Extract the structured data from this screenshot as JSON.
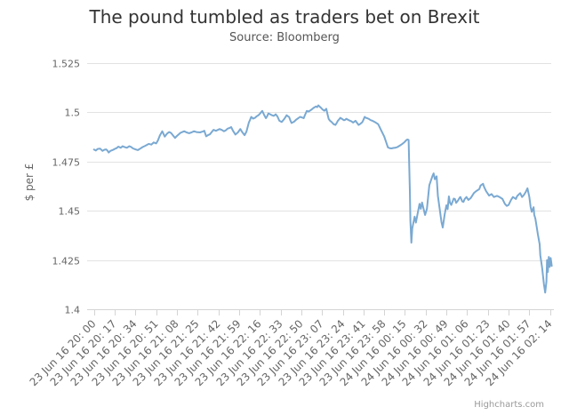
{
  "chart": {
    "title": "The pound tumbled as traders bet on Brexit",
    "subtitle": "Source: Bloomberg",
    "credit": "Highcharts.com"
  },
  "chart_data": {
    "type": "line",
    "title": "The pound tumbled as traders bet on Brexit",
    "subtitle": "Source: Bloomberg",
    "xlabel": "",
    "ylabel": "$ per £",
    "ylim": [
      1.4,
      1.525
    ],
    "yticks": [
      1.4,
      1.425,
      1.45,
      1.475,
      1.5,
      1.525
    ],
    "ytick_labels": [
      "1.4",
      "1.425",
      "1.45",
      "1.475",
      "1.5",
      "1.525"
    ],
    "xtick_labels": [
      "23 Jun 16 20: 00",
      "23 Jun 16 20: 17",
      "23 Jun 16 20: 34",
      "23 Jun 16 20: 51",
      "23 Jun 16 21: 08",
      "23 Jun 16 21: 25",
      "23 Jun 16 21: 42",
      "23 Jun 16 21: 59",
      "23 Jun 16 22: 16",
      "23 Jun 16 22: 33",
      "23 Jun 16 22: 50",
      "23 Jun 16 23: 07",
      "23 Jun 16 23: 24",
      "23 Jun 16 23: 41",
      "23 Jun 16 23: 58",
      "24 Jun 16 00: 15",
      "24 Jun 16 00: 32",
      "24 Jun 16 00: 49",
      "24 Jun 16 01: 06",
      "24 Jun 16 01: 23",
      "24 Jun 16 01: 40",
      "24 Jun 16 01: 57",
      "24 Jun 16 02: 14"
    ],
    "x_minutes_range": [
      0,
      374
    ],
    "xtick_interval_minutes": 17,
    "grid": true,
    "legend": false,
    "line_color": "#7aa9d2",
    "grid_color": "#e2e2e2",
    "axis_line_color": "#d4d4d4",
    "tick_label_color": "#666666",
    "points": [
      [
        0,
        1.4811
      ],
      [
        1.5,
        1.4806
      ],
      [
        3,
        1.4814
      ],
      [
        5,
        1.4816
      ],
      [
        7,
        1.4804
      ],
      [
        8.5,
        1.481
      ],
      [
        10,
        1.4812
      ],
      [
        11,
        1.4806
      ],
      [
        12,
        1.4796
      ],
      [
        13.5,
        1.4804
      ],
      [
        15.5,
        1.4809
      ],
      [
        17,
        1.4814
      ],
      [
        18.5,
        1.4818
      ],
      [
        20,
        1.4826
      ],
      [
        22,
        1.482
      ],
      [
        23.5,
        1.4828
      ],
      [
        25,
        1.4824
      ],
      [
        27,
        1.482
      ],
      [
        29,
        1.4828
      ],
      [
        30.5,
        1.4824
      ],
      [
        32,
        1.4817
      ],
      [
        34,
        1.4812
      ],
      [
        36,
        1.4808
      ],
      [
        38,
        1.4816
      ],
      [
        40,
        1.4824
      ],
      [
        42,
        1.483
      ],
      [
        45,
        1.484
      ],
      [
        47,
        1.4836
      ],
      [
        49,
        1.4847
      ],
      [
        51,
        1.4842
      ],
      [
        52.5,
        1.4858
      ],
      [
        54,
        1.4882
      ],
      [
        56,
        1.4904
      ],
      [
        58,
        1.4877
      ],
      [
        60,
        1.4892
      ],
      [
        61.5,
        1.49
      ],
      [
        63,
        1.4896
      ],
      [
        64,
        1.4889
      ],
      [
        66.5,
        1.487
      ],
      [
        68,
        1.488
      ],
      [
        71,
        1.4896
      ],
      [
        72.5,
        1.49
      ],
      [
        74,
        1.4904
      ],
      [
        76,
        1.4898
      ],
      [
        78,
        1.4894
      ],
      [
        80,
        1.4898
      ],
      [
        82,
        1.4904
      ],
      [
        84,
        1.49
      ],
      [
        87,
        1.4898
      ],
      [
        89,
        1.4902
      ],
      [
        90.5,
        1.4906
      ],
      [
        92,
        1.4878
      ],
      [
        93.5,
        1.4884
      ],
      [
        95,
        1.4888
      ],
      [
        96.5,
        1.49
      ],
      [
        98,
        1.4911
      ],
      [
        100,
        1.4906
      ],
      [
        103,
        1.4915
      ],
      [
        105,
        1.491
      ],
      [
        106.5,
        1.4904
      ],
      [
        108,
        1.4908
      ],
      [
        109.5,
        1.4917
      ],
      [
        111,
        1.492
      ],
      [
        112.5,
        1.4925
      ],
      [
        114,
        1.4906
      ],
      [
        116,
        1.4887
      ],
      [
        118,
        1.4898
      ],
      [
        120,
        1.4915
      ],
      [
        121.5,
        1.49
      ],
      [
        123.5,
        1.4884
      ],
      [
        125,
        1.4902
      ],
      [
        127,
        1.4948
      ],
      [
        128,
        1.4962
      ],
      [
        129,
        1.4977
      ],
      [
        130.5,
        1.4968
      ],
      [
        132,
        1.4972
      ],
      [
        133.5,
        1.498
      ],
      [
        135,
        1.4986
      ],
      [
        136.5,
        1.4996
      ],
      [
        138,
        1.5007
      ],
      [
        139.5,
        1.4988
      ],
      [
        141,
        1.497
      ],
      [
        142,
        1.498
      ],
      [
        143,
        1.4994
      ],
      [
        144.5,
        1.499
      ],
      [
        146,
        1.4985
      ],
      [
        147.5,
        1.4982
      ],
      [
        149,
        1.499
      ],
      [
        150.5,
        1.4979
      ],
      [
        152,
        1.4957
      ],
      [
        153,
        1.4954
      ],
      [
        154,
        1.4951
      ],
      [
        156,
        1.4966
      ],
      [
        158,
        1.4985
      ],
      [
        159,
        1.498
      ],
      [
        160,
        1.4976
      ],
      [
        161,
        1.496
      ],
      [
        162,
        1.4946
      ],
      [
        164,
        1.4952
      ],
      [
        166,
        1.4964
      ],
      [
        167.5,
        1.497
      ],
      [
        169,
        1.4977
      ],
      [
        170.5,
        1.4974
      ],
      [
        172,
        1.497
      ],
      [
        173,
        1.4986
      ],
      [
        174.5,
        1.5007
      ],
      [
        176,
        1.5004
      ],
      [
        178,
        1.5012
      ],
      [
        180,
        1.5022
      ],
      [
        182,
        1.503
      ],
      [
        183,
        1.5026
      ],
      [
        184,
        1.5035
      ],
      [
        186,
        1.5024
      ],
      [
        187.5,
        1.5014
      ],
      [
        189,
        1.5008
      ],
      [
        190.5,
        1.5018
      ],
      [
        191.5,
        1.499
      ],
      [
        192.5,
        1.4966
      ],
      [
        193.5,
        1.4958
      ],
      [
        195,
        1.495
      ],
      [
        196.5,
        1.494
      ],
      [
        198,
        1.4936
      ],
      [
        199,
        1.4946
      ],
      [
        200,
        1.4957
      ],
      [
        201,
        1.4964
      ],
      [
        202,
        1.4972
      ],
      [
        203.5,
        1.4966
      ],
      [
        205,
        1.496
      ],
      [
        206,
        1.4962
      ],
      [
        207,
        1.4967
      ],
      [
        209,
        1.496
      ],
      [
        211,
        1.4955
      ],
      [
        212.5,
        1.4948
      ],
      [
        214.5,
        1.4957
      ],
      [
        216,
        1.4944
      ],
      [
        217,
        1.4936
      ],
      [
        218.5,
        1.4942
      ],
      [
        220,
        1.495
      ],
      [
        221,
        1.4962
      ],
      [
        222,
        1.4977
      ],
      [
        223,
        1.4972
      ],
      [
        224,
        1.497
      ],
      [
        225.5,
        1.4966
      ],
      [
        227,
        1.496
      ],
      [
        228,
        1.4958
      ],
      [
        229,
        1.4955
      ],
      [
        231,
        1.4948
      ],
      [
        233,
        1.494
      ],
      [
        234,
        1.4928
      ],
      [
        235,
        1.4915
      ],
      [
        236.5,
        1.4896
      ],
      [
        238,
        1.4877
      ],
      [
        239.5,
        1.485
      ],
      [
        241,
        1.4822
      ],
      [
        242.5,
        1.4818
      ],
      [
        244,
        1.4817
      ],
      [
        245.5,
        1.4819
      ],
      [
        247,
        1.482
      ],
      [
        249,
        1.4824
      ],
      [
        251,
        1.4832
      ],
      [
        252.5,
        1.4838
      ],
      [
        254.5,
        1.4848
      ],
      [
        256,
        1.4858
      ],
      [
        257,
        1.4862
      ],
      [
        258,
        1.486
      ],
      [
        259,
        1.46
      ],
      [
        259.5,
        1.445
      ],
      [
        260.3,
        1.4338
      ],
      [
        261,
        1.441
      ],
      [
        262,
        1.4442
      ],
      [
        263,
        1.447
      ],
      [
        264,
        1.444
      ],
      [
        265.5,
        1.449
      ],
      [
        267,
        1.4535
      ],
      [
        268,
        1.451
      ],
      [
        269,
        1.4542
      ],
      [
        271.5,
        1.4479
      ],
      [
        273,
        1.451
      ],
      [
        275,
        1.463
      ],
      [
        277.5,
        1.4675
      ],
      [
        278.5,
        1.469
      ],
      [
        279.5,
        1.466
      ],
      [
        281,
        1.4675
      ],
      [
        282,
        1.4577
      ],
      [
        285,
        1.4442
      ],
      [
        286,
        1.4415
      ],
      [
        287.5,
        1.448
      ],
      [
        289,
        1.4528
      ],
      [
        290,
        1.4508
      ],
      [
        291,
        1.4573
      ],
      [
        292,
        1.454
      ],
      [
        293,
        1.453
      ],
      [
        295,
        1.4562
      ],
      [
        296,
        1.456
      ],
      [
        297,
        1.454
      ],
      [
        298.5,
        1.4552
      ],
      [
        300,
        1.4568
      ],
      [
        300.5,
        1.457
      ],
      [
        302,
        1.4548
      ],
      [
        303,
        1.4545
      ],
      [
        304,
        1.456
      ],
      [
        305.5,
        1.457
      ],
      [
        307,
        1.4555
      ],
      [
        309,
        1.4565
      ],
      [
        311.5,
        1.459
      ],
      [
        313.5,
        1.46
      ],
      [
        316,
        1.461
      ],
      [
        317,
        1.4628
      ],
      [
        319,
        1.4637
      ],
      [
        320,
        1.462
      ],
      [
        321.5,
        1.46
      ],
      [
        324,
        1.4577
      ],
      [
        326,
        1.4585
      ],
      [
        328,
        1.457
      ],
      [
        330.5,
        1.4576
      ],
      [
        332.5,
        1.457
      ],
      [
        335,
        1.456
      ],
      [
        337,
        1.4535
      ],
      [
        338.5,
        1.4525
      ],
      [
        340,
        1.453
      ],
      [
        342,
        1.4555
      ],
      [
        343.5,
        1.457
      ],
      [
        346,
        1.456
      ],
      [
        347,
        1.4575
      ],
      [
        349.5,
        1.459
      ],
      [
        351,
        1.457
      ],
      [
        352.5,
        1.458
      ],
      [
        354,
        1.4595
      ],
      [
        355.5,
        1.4614
      ],
      [
        357,
        1.457
      ],
      [
        358,
        1.452
      ],
      [
        359,
        1.4495
      ],
      [
        360.5,
        1.4518
      ],
      [
        361,
        1.448
      ],
      [
        362,
        1.446
      ],
      [
        363,
        1.442
      ],
      [
        364,
        1.438
      ],
      [
        365.5,
        1.433
      ],
      [
        366,
        1.4275
      ],
      [
        367.5,
        1.421
      ],
      [
        369,
        1.4127
      ],
      [
        370,
        1.4085
      ],
      [
        371,
        1.414
      ],
      [
        371.5,
        1.425
      ],
      [
        372.2,
        1.4189
      ],
      [
        373,
        1.4266
      ],
      [
        373.7,
        1.4215
      ],
      [
        374.5,
        1.426
      ],
      [
        375.4,
        1.422
      ]
    ]
  }
}
